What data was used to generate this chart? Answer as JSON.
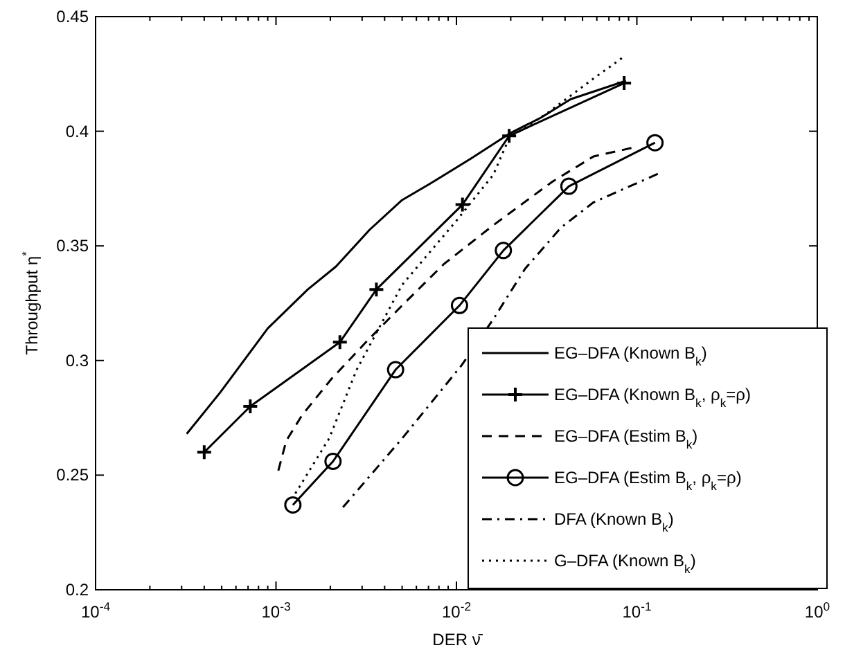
{
  "chart_data": {
    "type": "line",
    "xlabel": "DER ν̄",
    "ylabel": "Throughput η$^{*}$",
    "log": "x",
    "xlim": [
      0.0001,
      1
    ],
    "xticks": [
      {
        "value": 0.0001,
        "label": "10$^{-4}$"
      },
      {
        "value": 0.001,
        "label": "10$^{-3}$"
      },
      {
        "value": 0.01,
        "label": "10$^{-2}$"
      },
      {
        "value": 0.1,
        "label": "10$^{-1}$"
      },
      {
        "value": 1,
        "label": "10$^{0}$"
      }
    ],
    "ylim": [
      0.2,
      0.45
    ],
    "yticks": [
      0.2,
      0.25,
      0.3,
      0.35,
      0.4,
      0.45
    ],
    "grid": false,
    "legend": "bottom right",
    "series": [
      {
        "name": "EG–DFA (Known B$_{k}$)",
        "color": "#000000",
        "line_style": "solid",
        "marker": "none",
        "x": [
          0.00032,
          0.00049,
          0.0009,
          0.0015,
          0.00215,
          0.0033,
          0.005,
          0.0071,
          0.012,
          0.0197,
          0.0295,
          0.043,
          0.087
        ],
        "values": [
          0.268,
          0.286,
          0.314,
          0.331,
          0.341,
          0.357,
          0.37,
          0.377,
          0.388,
          0.399,
          0.406,
          0.414,
          0.422
        ]
      },
      {
        "name": "EG–DFA (Known B$_{k}$, ρ$_{k}$=ρ)",
        "color": "#000000",
        "line_style": "solid",
        "marker": "cross",
        "x": [
          0.0004,
          0.00072,
          0.00226,
          0.0036,
          0.0108,
          0.0196,
          0.085
        ],
        "values": [
          0.26,
          0.28,
          0.308,
          0.331,
          0.368,
          0.398,
          0.421
        ]
      },
      {
        "name": "EG–DFA (Estim B$_{k}$)",
        "color": "#000000",
        "line_style": "dashed",
        "marker": "none",
        "x": [
          0.00103,
          0.00114,
          0.00139,
          0.00203,
          0.00315,
          0.005,
          0.0085,
          0.016,
          0.034,
          0.0575,
          0.097
        ],
        "values": [
          0.252,
          0.265,
          0.276,
          0.292,
          0.308,
          0.324,
          0.342,
          0.359,
          0.378,
          0.389,
          0.393
        ]
      },
      {
        "name": "EG–DFA (Estim B$_{k}$, ρ$_{k}$=ρ)",
        "color": "#000000",
        "line_style": "solid",
        "marker": "circle",
        "x": [
          0.00124,
          0.00207,
          0.0046,
          0.0104,
          0.0182,
          0.042,
          0.126
        ],
        "values": [
          0.237,
          0.256,
          0.296,
          0.324,
          0.348,
          0.376,
          0.395
        ]
      },
      {
        "name": "DFA (Known B$_{k}$)",
        "color": "#000000",
        "line_style": "dashdot",
        "marker": "none",
        "x": [
          0.00235,
          0.005,
          0.0107,
          0.016,
          0.024,
          0.038,
          0.0575,
          0.136
        ],
        "values": [
          0.236,
          0.266,
          0.298,
          0.318,
          0.34,
          0.358,
          0.369,
          0.382
        ]
      },
      {
        "name": "G–DFA (Known B$_{k}$)",
        "color": "#000000",
        "line_style": "dotted",
        "marker": "none",
        "x": [
          0.00128,
          0.00197,
          0.0028,
          0.005,
          0.01,
          0.016,
          0.0196,
          0.032,
          0.0575,
          0.083
        ],
        "values": [
          0.242,
          0.266,
          0.296,
          0.333,
          0.361,
          0.381,
          0.397,
          0.408,
          0.423,
          0.432
        ]
      }
    ]
  }
}
